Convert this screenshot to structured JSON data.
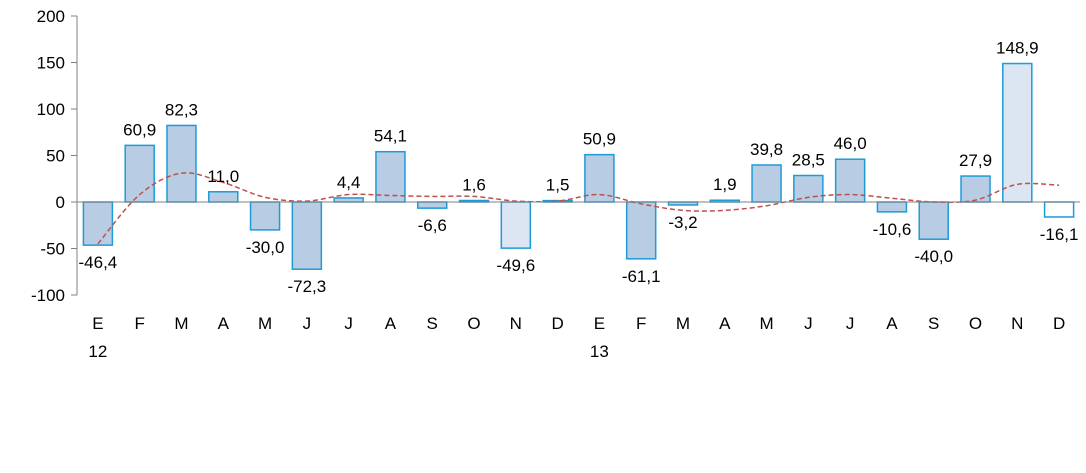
{
  "chart_data": {
    "type": "bar",
    "title": "",
    "xlabel": "",
    "ylabel": "",
    "ylim": [
      -100,
      200
    ],
    "yticks": [
      -100,
      -50,
      0,
      50,
      100,
      150,
      200
    ],
    "grid": false,
    "categories": [
      "E",
      "F",
      "M",
      "A",
      "M",
      "J",
      "J",
      "A",
      "S",
      "O",
      "N",
      "D",
      "E",
      "F",
      "M",
      "A",
      "M",
      "J",
      "J",
      "A",
      "S",
      "O",
      "N",
      "D"
    ],
    "year_labels": [
      {
        "index": 0,
        "label": "12"
      },
      {
        "index": 12,
        "label": "13"
      }
    ],
    "series": [
      {
        "kind": "bar",
        "values": [
          -46.4,
          60.9,
          82.3,
          11.0,
          -30.0,
          -72.3,
          4.4,
          54.1,
          -6.6,
          1.6,
          -49.6,
          1.5,
          50.9,
          -61.1,
          -3.2,
          1.9,
          39.8,
          28.5,
          46.0,
          -10.6,
          -40.0,
          27.9,
          148.9,
          -16.1
        ],
        "data_labels": [
          "-46,4",
          "60,9",
          "82,3",
          "11,0",
          "-30,0",
          "-72,3",
          "4,4",
          "54,1",
          "-6,6",
          "1,6",
          "-49,6",
          "1,5",
          "50,9",
          "-61,1",
          "-3,2",
          "1,9",
          "39,8",
          "28,5",
          "46,0",
          "-10,6",
          "-40,0",
          "27,9",
          "148,9",
          "-16,1"
        ],
        "styles": [
          "normal",
          "normal",
          "normal",
          "normal",
          "normal",
          "normal",
          "normal",
          "normal",
          "normal",
          "normal",
          "light",
          "normal",
          "normal",
          "normal",
          "normal",
          "normal",
          "normal",
          "normal",
          "normal",
          "normal",
          "normal",
          "normal",
          "light",
          "empty"
        ]
      },
      {
        "kind": "trend",
        "values": [
          -45,
          8,
          31,
          21,
          5,
          1,
          8,
          7,
          6,
          6,
          1,
          1,
          8,
          -2,
          -9,
          -9,
          -4,
          5,
          8,
          4,
          0,
          2,
          19,
          18
        ]
      }
    ],
    "colors": {
      "bar_fill": "#b8cce4",
      "bar_fill_light": "#dce6f2",
      "bar_fill_empty": "#ffffff",
      "bar_stroke": "#1e9bd7",
      "trend": "#c0504d",
      "axis": "#808080"
    }
  }
}
